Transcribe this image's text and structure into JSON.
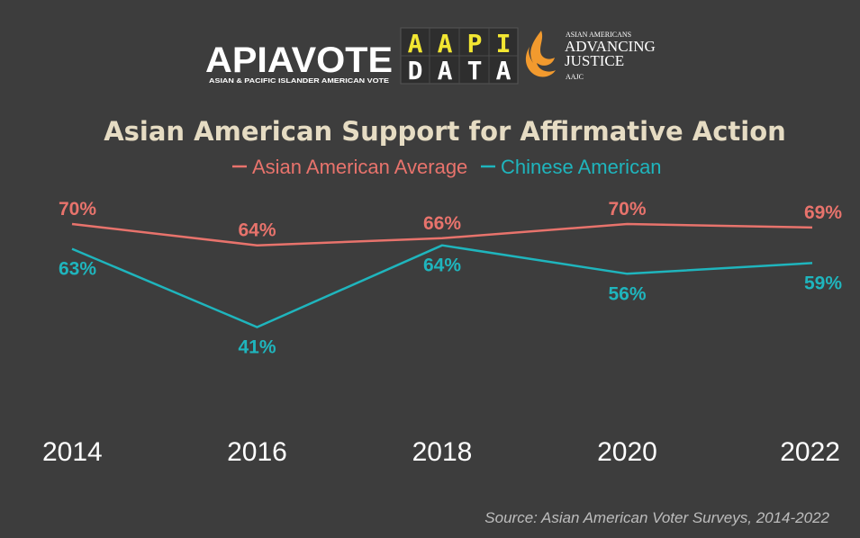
{
  "logos": {
    "apiavote": {
      "name": "APIAVOTE",
      "tagline": "ASIAN & PACIFIC ISLANDER AMERICAN VOTE"
    },
    "aapidata": {
      "letters": [
        "A",
        "A",
        "P",
        "I",
        "D",
        "A",
        "T",
        "A"
      ]
    },
    "aajc": {
      "small": "ASIAN AMERICANS",
      "line1": "ADVANCING",
      "line2": "JUSTICE",
      "abbr": "AAJC"
    }
  },
  "chart_data": {
    "type": "line",
    "title": "Asian American Support for Affirmative Action",
    "x": [
      "2014",
      "2016",
      "2018",
      "2020",
      "2022"
    ],
    "series": [
      {
        "name": "Asian American Average",
        "color": "#e8736c",
        "values": [
          70,
          64,
          66,
          70,
          69
        ],
        "labels": [
          "70%",
          "64%",
          "66%",
          "70%",
          "69%"
        ]
      },
      {
        "name": "Chinese American",
        "color": "#1fb5bd",
        "values": [
          63,
          41,
          64,
          56,
          59
        ],
        "labels": [
          "63%",
          "41%",
          "64%",
          "56%",
          "59%"
        ]
      }
    ],
    "legend_position": "top-center",
    "grid": false,
    "source": "Source: Asian American Voter Surveys, 2014-2022"
  }
}
